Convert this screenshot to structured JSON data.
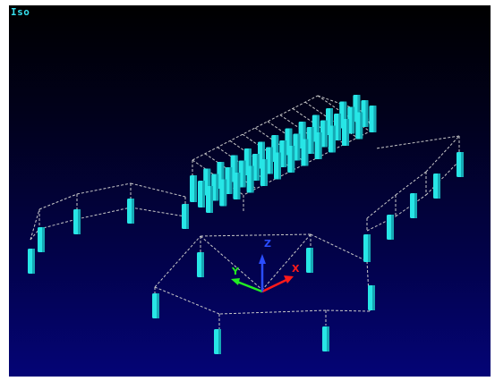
{
  "viewport": {
    "view_label": "Iso"
  },
  "triad": {
    "x_label": "X",
    "y_label": "Y",
    "z_label": "Z",
    "x_color": "#ff1a1a",
    "y_color": "#22ee22",
    "z_color": "#2a4dff"
  },
  "colors": {
    "pile": "#27e6e6",
    "pile_shadow": "#16a9b4",
    "wire": "#c8c8c8"
  }
}
